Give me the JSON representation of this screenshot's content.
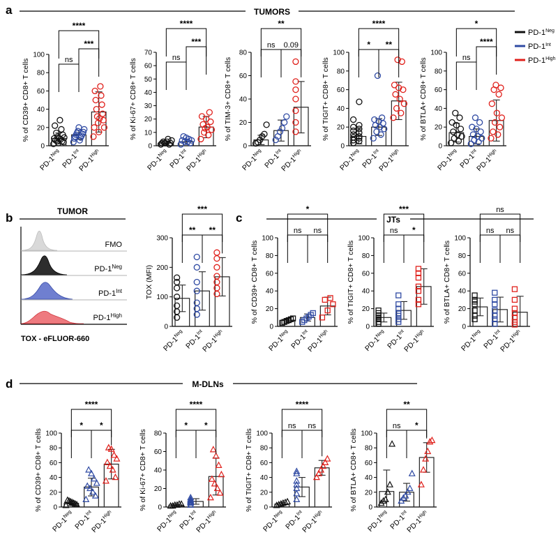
{
  "figure": {
    "panel_labels": [
      "a",
      "b",
      "c",
      "d"
    ],
    "section_titles": {
      "a": "TUMORS",
      "b": "TUMOR",
      "c": "JTs",
      "d": "M-DLNs"
    },
    "legend": [
      {
        "label": "PD-1",
        "sup": "Neg",
        "color": "#111111"
      },
      {
        "label": "PD-1",
        "sup": "Int",
        "color": "#2f4aa3"
      },
      {
        "label": "PD-1",
        "sup": "High",
        "color": "#e0201b"
      }
    ],
    "histogram": {
      "rows": [
        "FMO",
        "PD-1|Neg",
        "PD-1|Int",
        "PD-1|High"
      ],
      "colors": [
        "#d9d9d9",
        "#2d2d2d",
        "#6f7fd0",
        "#ee7a7f"
      ],
      "xlabel": "TOX - eFLUOR-660"
    },
    "colors": {
      "neg": "#111111",
      "int": "#2f4aa3",
      "high": "#e0201b",
      "bar": "#222222"
    }
  },
  "chart_data": [
    {
      "id": "a1",
      "panel": "a",
      "type": "bar",
      "ylabel": "% of CD39+ CD8+ T cells",
      "ylim": [
        0,
        100
      ],
      "yticks": [
        0,
        20,
        40,
        60,
        80,
        100
      ],
      "categories": [
        "PD-1|Neg",
        "PD-1|Int",
        "PD-1|High"
      ],
      "values": [
        8,
        12,
        37
      ],
      "errors": [
        6,
        5,
        22
      ],
      "marker": "circle",
      "sig": [
        {
          "from": 0,
          "to": 2,
          "label": "****"
        },
        {
          "from": 1,
          "to": 2,
          "label": "***"
        },
        {
          "from": 0,
          "to": 1,
          "label": "ns"
        }
      ],
      "points": [
        [
          2,
          3,
          4,
          5,
          5,
          6,
          7,
          8,
          8,
          9,
          10,
          12,
          14,
          18,
          22,
          28
        ],
        [
          4,
          6,
          8,
          9,
          10,
          11,
          12,
          13,
          14,
          15,
          16,
          18,
          20
        ],
        [
          10,
          15,
          20,
          25,
          28,
          32,
          35,
          40,
          45,
          50,
          55,
          60,
          65,
          20,
          30
        ]
      ]
    },
    {
      "id": "a2",
      "panel": "a",
      "type": "bar",
      "ylabel": "% of Ki-67+ CD8+ T cells",
      "ylim": [
        0,
        70
      ],
      "yticks": [
        0,
        10,
        20,
        30,
        40,
        50,
        60,
        70
      ],
      "categories": [
        "PD-1|Neg",
        "PD-1|Int",
        "PD-1|High"
      ],
      "values": [
        2,
        3,
        14
      ],
      "errors": [
        1.5,
        2,
        8
      ],
      "marker": "circle",
      "sig": [
        {
          "from": 0,
          "to": 2,
          "label": "****"
        },
        {
          "from": 1,
          "to": 2,
          "label": "***"
        },
        {
          "from": 0,
          "to": 1,
          "label": "ns"
        }
      ],
      "points": [
        [
          1,
          1,
          2,
          2,
          2,
          3,
          3,
          4,
          5,
          2
        ],
        [
          1,
          2,
          3,
          3,
          4,
          4,
          5,
          6,
          7
        ],
        [
          5,
          8,
          10,
          12,
          14,
          16,
          18,
          20,
          22,
          25,
          13
        ]
      ]
    },
    {
      "id": "a3",
      "panel": "a",
      "type": "bar",
      "ylabel": "% of TIM-3+ CD8+ T cells",
      "ylim": [
        0,
        80
      ],
      "yticks": [
        0,
        20,
        40,
        60,
        80
      ],
      "categories": [
        "PD-1|Neg",
        "PD-1|Int",
        "PD-1|High"
      ],
      "values": [
        5,
        13,
        33
      ],
      "errors": [
        4,
        9,
        22
      ],
      "marker": "circle",
      "sig": [
        {
          "from": 0,
          "to": 2,
          "label": "**"
        },
        {
          "from": 1,
          "to": 2,
          "label": "0.09"
        },
        {
          "from": 0,
          "to": 1,
          "label": "ns"
        }
      ],
      "points": [
        [
          2,
          3,
          5,
          8,
          10,
          18
        ],
        [
          5,
          8,
          12,
          15,
          20,
          25
        ],
        [
          12,
          20,
          30,
          40,
          48,
          55,
          72
        ]
      ]
    },
    {
      "id": "a4",
      "panel": "a",
      "type": "bar",
      "ylabel": "% of TIGIT+ CD8+ T cells",
      "ylim": [
        0,
        100
      ],
      "yticks": [
        0,
        20,
        40,
        60,
        80,
        100
      ],
      "categories": [
        "PD-1|Neg",
        "PD-1|Int",
        "PD-1|High"
      ],
      "values": [
        10,
        20,
        48
      ],
      "errors": [
        8,
        9,
        20
      ],
      "marker": "circle",
      "sig": [
        {
          "from": 0,
          "to": 2,
          "label": "****"
        },
        {
          "from": 0,
          "to": 1,
          "label": "*"
        },
        {
          "from": 1,
          "to": 2,
          "label": "**"
        }
      ],
      "points": [
        [
          3,
          5,
          6,
          8,
          9,
          10,
          12,
          14,
          16,
          18,
          20,
          22,
          28,
          47
        ],
        [
          8,
          12,
          15,
          18,
          20,
          22,
          24,
          26,
          28,
          30,
          75
        ],
        [
          30,
          35,
          40,
          45,
          50,
          55,
          60,
          62,
          65,
          90,
          92
        ]
      ]
    },
    {
      "id": "a5",
      "panel": "a",
      "type": "bar",
      "ylabel": "% of BTLA+ CD8+ T cells",
      "ylim": [
        0,
        100
      ],
      "yticks": [
        0,
        20,
        40,
        60,
        80,
        100
      ],
      "categories": [
        "PD-1|Neg",
        "PD-1|Int",
        "PD-1|High"
      ],
      "values": [
        14,
        10,
        27
      ],
      "errors": [
        10,
        8,
        22
      ],
      "marker": "circle",
      "sig": [
        {
          "from": 0,
          "to": 2,
          "label": "*"
        },
        {
          "from": 1,
          "to": 2,
          "label": "****"
        },
        {
          "from": 0,
          "to": 1,
          "label": "ns"
        }
      ],
      "points": [
        [
          3,
          5,
          8,
          10,
          12,
          15,
          18,
          22,
          25,
          30,
          35
        ],
        [
          2,
          4,
          6,
          8,
          10,
          12,
          15,
          18,
          20,
          25,
          30
        ],
        [
          8,
          12,
          15,
          20,
          25,
          30,
          35,
          45,
          55,
          60,
          62,
          65
        ]
      ]
    },
    {
      "id": "b1",
      "panel": "b",
      "type": "bar",
      "ylabel": "TOX (MFI)",
      "ylim": [
        0,
        300
      ],
      "yticks": [
        0,
        100,
        200,
        300
      ],
      "categories": [
        "PD-1|Neg",
        "PD-1|Int",
        "PD-1|High"
      ],
      "values": [
        95,
        120,
        168
      ],
      "errors": [
        45,
        65,
        65
      ],
      "marker": "circle",
      "sig": [
        {
          "from": 0,
          "to": 2,
          "label": "***"
        },
        {
          "from": 0,
          "to": 1,
          "label": "**"
        },
        {
          "from": 1,
          "to": 2,
          "label": "**"
        }
      ],
      "points": [
        [
          30,
          50,
          70,
          100,
          130,
          150,
          165
        ],
        [
          40,
          60,
          80,
          120,
          150,
          200,
          235
        ],
        [
          110,
          130,
          150,
          170,
          200,
          230,
          250
        ]
      ]
    },
    {
      "id": "c1",
      "panel": "c",
      "type": "bar",
      "ylabel": "% of CD39+ CD8+ T cells",
      "ylim": [
        0,
        100
      ],
      "yticks": [
        0,
        20,
        40,
        60,
        80,
        100
      ],
      "categories": [
        "PD-1|Neg",
        "PD-1|Int",
        "PD-1|High"
      ],
      "values": [
        7,
        10,
        23
      ],
      "errors": [
        2,
        4,
        10
      ],
      "marker": "square",
      "sig": [
        {
          "from": 0,
          "to": 2,
          "label": "*"
        },
        {
          "from": 0,
          "to": 1,
          "label": "ns"
        },
        {
          "from": 1,
          "to": 2,
          "label": "ns"
        }
      ],
      "points": [
        [
          4,
          5,
          6,
          7,
          8,
          9
        ],
        [
          5,
          7,
          9,
          11,
          13,
          15
        ],
        [
          10,
          18,
          25,
          30,
          32
        ]
      ]
    },
    {
      "id": "c2",
      "panel": "c",
      "type": "bar",
      "ylabel": "% of TIGIT+ CD8+ T cells",
      "ylim": [
        0,
        100
      ],
      "yticks": [
        0,
        20,
        40,
        60,
        80,
        100
      ],
      "categories": [
        "PD-1|Neg",
        "PD-1|Int",
        "PD-1|High"
      ],
      "values": [
        10,
        18,
        45
      ],
      "errors": [
        5,
        10,
        20
      ],
      "marker": "square",
      "sig": [
        {
          "from": 0,
          "to": 2,
          "label": "***"
        },
        {
          "from": 0,
          "to": 1,
          "label": "ns"
        },
        {
          "from": 1,
          "to": 2,
          "label": "*"
        }
      ],
      "points": [
        [
          3,
          5,
          8,
          10,
          12,
          15,
          18
        ],
        [
          5,
          8,
          12,
          15,
          20,
          25,
          35
        ],
        [
          25,
          30,
          40,
          45,
          55,
          60,
          65
        ]
      ]
    },
    {
      "id": "c3",
      "panel": "c",
      "type": "bar",
      "ylabel": "% of BTLA+ CD8+ T cells",
      "ylim": [
        0,
        100
      ],
      "yticks": [
        0,
        20,
        40,
        60,
        80,
        100
      ],
      "categories": [
        "PD-1|Neg",
        "PD-1|Int",
        "PD-1|High"
      ],
      "values": [
        22,
        19,
        16
      ],
      "errors": [
        10,
        14,
        18
      ],
      "marker": "square",
      "sig": [
        {
          "from": 0,
          "to": 2,
          "label": "ns"
        },
        {
          "from": 0,
          "to": 1,
          "label": "ns"
        },
        {
          "from": 1,
          "to": 2,
          "label": "ns"
        }
      ],
      "points": [
        [
          8,
          12,
          18,
          25,
          28,
          30,
          35
        ],
        [
          3,
          8,
          12,
          18,
          25,
          30,
          38
        ],
        [
          2,
          5,
          10,
          15,
          20,
          30,
          42
        ]
      ]
    },
    {
      "id": "d1",
      "panel": "d",
      "type": "bar",
      "ylabel": "% of CD39+ CD8+ T cells",
      "ylim": [
        0,
        100
      ],
      "yticks": [
        0,
        20,
        40,
        60,
        80,
        100
      ],
      "categories": [
        "PD-1|Neg",
        "PD-1|Int",
        "PD-1|High"
      ],
      "values": [
        5,
        27,
        58
      ],
      "errors": [
        3,
        12,
        20
      ],
      "marker": "triangle",
      "sig": [
        {
          "from": 0,
          "to": 2,
          "label": "****"
        },
        {
          "from": 0,
          "to": 1,
          "label": "*"
        },
        {
          "from": 1,
          "to": 2,
          "label": "*"
        }
      ],
      "points": [
        [
          2,
          3,
          4,
          5,
          6,
          7,
          8,
          9
        ],
        [
          10,
          15,
          20,
          25,
          28,
          32,
          38,
          45,
          50
        ],
        [
          35,
          40,
          50,
          55,
          60,
          65,
          70,
          78,
          80
        ]
      ]
    },
    {
      "id": "d2",
      "panel": "d",
      "type": "bar",
      "ylabel": "% of Ki-67+ CD8+ T cells",
      "ylim": [
        0,
        80
      ],
      "yticks": [
        0,
        20,
        40,
        60,
        80
      ],
      "categories": [
        "PD-1|Neg",
        "PD-1|Int",
        "PD-1|High"
      ],
      "values": [
        2,
        6,
        33
      ],
      "errors": [
        1,
        3,
        20
      ],
      "marker": "triangle",
      "sig": [
        {
          "from": 0,
          "to": 2,
          "label": "****"
        },
        {
          "from": 0,
          "to": 1,
          "label": "*"
        },
        {
          "from": 1,
          "to": 2,
          "label": "*"
        }
      ],
      "points": [
        [
          1,
          1,
          2,
          2,
          3,
          3
        ],
        [
          2,
          4,
          5,
          6,
          7,
          8,
          10
        ],
        [
          10,
          15,
          20,
          25,
          30,
          35,
          45,
          55,
          62
        ]
      ]
    },
    {
      "id": "d3",
      "panel": "d",
      "type": "bar",
      "ylabel": "% of TIGIT+ CD8+ T cells",
      "ylim": [
        0,
        100
      ],
      "yticks": [
        0,
        20,
        40,
        60,
        80,
        100
      ],
      "categories": [
        "PD-1|Neg",
        "PD-1|Int",
        "PD-1|High"
      ],
      "values": [
        4,
        27,
        53
      ],
      "errors": [
        2,
        13,
        10
      ],
      "marker": "triangle",
      "sig": [
        {
          "from": 0,
          "to": 2,
          "label": "****"
        },
        {
          "from": 0,
          "to": 1,
          "label": "ns"
        },
        {
          "from": 1,
          "to": 2,
          "label": "ns"
        }
      ],
      "points": [
        [
          2,
          3,
          4,
          5,
          6,
          7
        ],
        [
          10,
          18,
          25,
          30,
          35,
          45,
          48
        ],
        [
          40,
          45,
          50,
          55,
          60,
          65
        ]
      ]
    },
    {
      "id": "d4",
      "panel": "d",
      "type": "bar",
      "ylabel": "% of BTLA+ CD8+ T cells",
      "ylim": [
        0,
        100
      ],
      "yticks": [
        0,
        20,
        40,
        60,
        80,
        100
      ],
      "categories": [
        "PD-1|Neg",
        "PD-1|Int",
        "PD-1|High"
      ],
      "values": [
        21,
        20,
        67
      ],
      "errors": [
        29,
        12,
        20
      ],
      "marker": "triangle",
      "sig": [
        {
          "from": 0,
          "to": 2,
          "label": "**"
        },
        {
          "from": 0,
          "to": 1,
          "label": "ns"
        },
        {
          "from": 1,
          "to": 2,
          "label": "*"
        }
      ],
      "points": [
        [
          5,
          8,
          10,
          20,
          30,
          85
        ],
        [
          8,
          12,
          15,
          20,
          25,
          45
        ],
        [
          30,
          50,
          65,
          75,
          88,
          90
        ]
      ]
    }
  ]
}
